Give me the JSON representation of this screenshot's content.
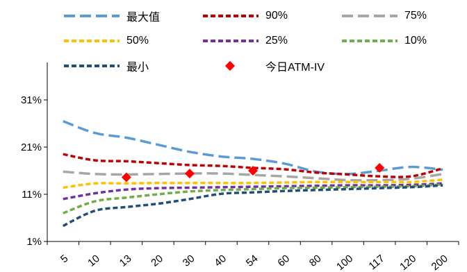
{
  "chart_data": {
    "type": "line",
    "title": "",
    "x": [
      "5",
      "10",
      "13",
      "20",
      "30",
      "40",
      "54",
      "60",
      "80",
      "100",
      "117",
      "120",
      "200"
    ],
    "ylim": [
      1,
      36
    ],
    "yticks": [
      "1%",
      "11%",
      "21%",
      "31%"
    ],
    "ytick_values": [
      1,
      11,
      21,
      31
    ],
    "legend_position": "top",
    "series": [
      {
        "name": "最大值",
        "color": "#5B9BD5",
        "dash": "long",
        "values": [
          26.5,
          24,
          23,
          21.5,
          20,
          19,
          18.5,
          17.5,
          15.8,
          15.3,
          16,
          16.8,
          16.2
        ]
      },
      {
        "name": "90%",
        "color": "#C00000",
        "dash": "short",
        "values": [
          19.5,
          18.2,
          18,
          17.6,
          17.2,
          17,
          16.6,
          16.3,
          15.6,
          15.2,
          14.8,
          14.8,
          16.5
        ]
      },
      {
        "name": "75%",
        "color": "#A6A6A6",
        "dash": "long",
        "values": [
          15.8,
          15.3,
          15.2,
          15.3,
          15.4,
          15.4,
          15.1,
          14.8,
          14.4,
          14.0,
          14.0,
          14.3,
          15.3
        ]
      },
      {
        "name": "50%",
        "color": "#FFC000",
        "dash": "short",
        "values": [
          12.4,
          13.3,
          13.3,
          13.4,
          13.4,
          13.4,
          13.4,
          13.5,
          13.6,
          13.6,
          13.6,
          13.6,
          14.1
        ]
      },
      {
        "name": "25%",
        "color": "#7030A0",
        "dash": "short",
        "values": [
          10,
          11.2,
          12.0,
          12.3,
          12.4,
          12.5,
          12.6,
          12.7,
          12.8,
          12.9,
          12.9,
          13.0,
          13.3
        ]
      },
      {
        "name": "10%",
        "color": "#70AD47",
        "dash": "short",
        "values": [
          7,
          9.5,
          10.3,
          11.0,
          11.6,
          11.9,
          12.1,
          12.3,
          12.4,
          12.5,
          12.6,
          12.7,
          13.1
        ]
      },
      {
        "name": "最小",
        "color": "#1F4E79",
        "dash": "short",
        "values": [
          4.3,
          7.5,
          8.3,
          9.0,
          10.0,
          11.1,
          11.4,
          11.7,
          11.9,
          12.1,
          12.3,
          12.5,
          12.9
        ]
      }
    ],
    "markers": {
      "name": "今日ATM-IV",
      "color": "#FF0000",
      "shape": "diamond",
      "points": [
        {
          "x": "13",
          "y": 14.6
        },
        {
          "x": "30",
          "y": 15.4
        },
        {
          "x": "54",
          "y": 16.0
        },
        {
          "x": "117",
          "y": 16.6
        }
      ]
    }
  }
}
